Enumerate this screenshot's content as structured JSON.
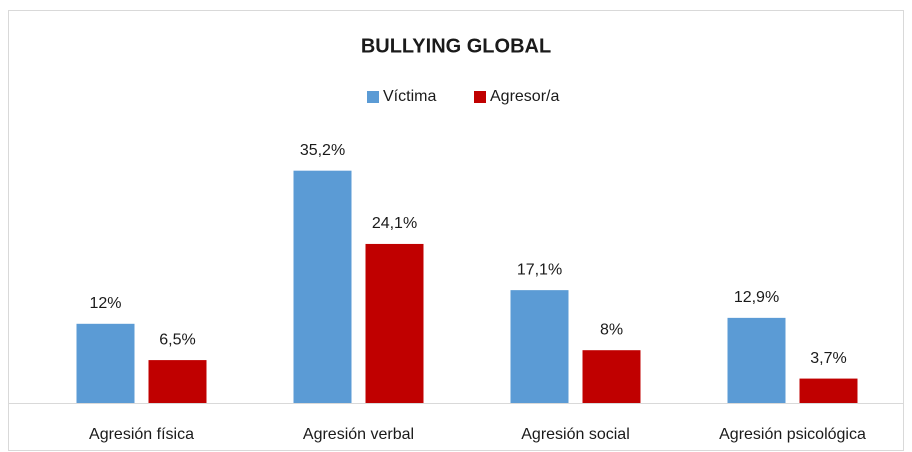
{
  "chart_data": {
    "type": "bar",
    "title": "BULLYING GLOBAL",
    "categories": [
      "Agresión física",
      "Agresión verbal",
      "Agresión social",
      "Agresión psicológica"
    ],
    "series": [
      {
        "name": "Víctima",
        "color": "#5b9bd5",
        "values": [
          12,
          35.2,
          17.1,
          12.9
        ],
        "value_labels": [
          "12%",
          "35,2%",
          "17,1%",
          "12,9%"
        ]
      },
      {
        "name": "Agresor/a",
        "color": "#c00000",
        "values": [
          6.5,
          24.1,
          8,
          3.7
        ],
        "value_labels": [
          "6,5%",
          "24,1%",
          "8%",
          "3,7%"
        ]
      }
    ],
    "ylim": [
      0,
      40
    ],
    "legend": "top"
  }
}
